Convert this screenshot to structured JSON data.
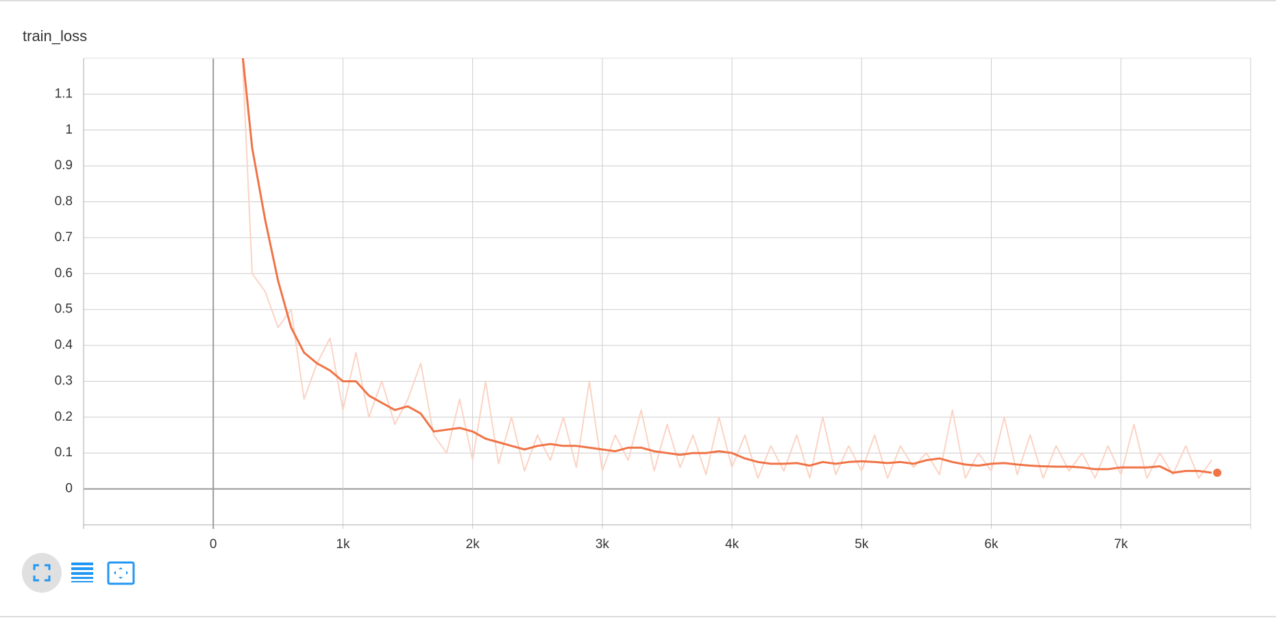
{
  "chart_data": {
    "type": "line",
    "title": "train_loss",
    "x": [
      200,
      300,
      400,
      500,
      600,
      700,
      800,
      900,
      1000,
      1100,
      1200,
      1300,
      1400,
      1500,
      1600,
      1700,
      1800,
      1900,
      2000,
      2100,
      2200,
      2300,
      2400,
      2500,
      2600,
      2700,
      2800,
      2900,
      3000,
      3100,
      3200,
      3300,
      3400,
      3500,
      3600,
      3700,
      3800,
      3900,
      4000,
      4100,
      4200,
      4300,
      4400,
      4500,
      4600,
      4700,
      4800,
      4900,
      5000,
      5100,
      5200,
      5300,
      5400,
      5500,
      5600,
      5700,
      5800,
      5900,
      6000,
      6100,
      6200,
      6300,
      6400,
      6500,
      6600,
      6700,
      6800,
      6900,
      7000,
      7100,
      7200,
      7300,
      7400,
      7500,
      7600,
      7700
    ],
    "series": [
      {
        "color": "#fbd3c4",
        "values": [
          1.4,
          0.6,
          0.55,
          0.45,
          0.5,
          0.25,
          0.35,
          0.42,
          0.22,
          0.38,
          0.2,
          0.3,
          0.18,
          0.25,
          0.35,
          0.15,
          0.1,
          0.25,
          0.08,
          0.3,
          0.07,
          0.2,
          0.05,
          0.15,
          0.08,
          0.2,
          0.06,
          0.3,
          0.05,
          0.15,
          0.08,
          0.22,
          0.05,
          0.18,
          0.06,
          0.15,
          0.04,
          0.2,
          0.06,
          0.15,
          0.03,
          0.12,
          0.05,
          0.15,
          0.03,
          0.2,
          0.04,
          0.12,
          0.05,
          0.15,
          0.03,
          0.12,
          0.06,
          0.1,
          0.04,
          0.22,
          0.03,
          0.1,
          0.05,
          0.2,
          0.04,
          0.15,
          0.03,
          0.12,
          0.05,
          0.1,
          0.03,
          0.12,
          0.04,
          0.18,
          0.03,
          0.1,
          0.04,
          0.12,
          0.03,
          0.08
        ]
      },
      {
        "color": "#f07346",
        "values": [
          1.3,
          0.95,
          0.75,
          0.58,
          0.45,
          0.38,
          0.35,
          0.33,
          0.3,
          0.3,
          0.26,
          0.24,
          0.22,
          0.23,
          0.21,
          0.16,
          0.165,
          0.17,
          0.16,
          0.14,
          0.13,
          0.12,
          0.11,
          0.12,
          0.125,
          0.12,
          0.12,
          0.115,
          0.11,
          0.105,
          0.115,
          0.115,
          0.105,
          0.1,
          0.095,
          0.1,
          0.1,
          0.105,
          0.1,
          0.085,
          0.075,
          0.07,
          0.07,
          0.072,
          0.065,
          0.075,
          0.07,
          0.075,
          0.077,
          0.075,
          0.072,
          0.075,
          0.07,
          0.08,
          0.085,
          0.075,
          0.068,
          0.065,
          0.07,
          0.072,
          0.068,
          0.065,
          0.063,
          0.062,
          0.062,
          0.06,
          0.055,
          0.055,
          0.06,
          0.06,
          0.06,
          0.063,
          0.045,
          0.05,
          0.05,
          0.045
        ]
      }
    ],
    "xlim": [
      -1000,
      8000
    ],
    "xticks": [
      0,
      {
        "value": 1000,
        "label": "1k"
      },
      {
        "value": 2000,
        "label": "2k"
      },
      {
        "value": 3000,
        "label": "3k"
      },
      {
        "value": 4000,
        "label": "4k"
      },
      {
        "value": 5000,
        "label": "5k"
      },
      {
        "value": 6000,
        "label": "6k"
      },
      {
        "value": 7000,
        "label": "7k"
      }
    ],
    "ylim": [
      -0.1,
      1.2
    ],
    "yticks": [
      0,
      0.1,
      0.2,
      0.3,
      0.4,
      0.5,
      0.6,
      0.7,
      0.8,
      0.9,
      1,
      1.1
    ],
    "grid": true
  }
}
